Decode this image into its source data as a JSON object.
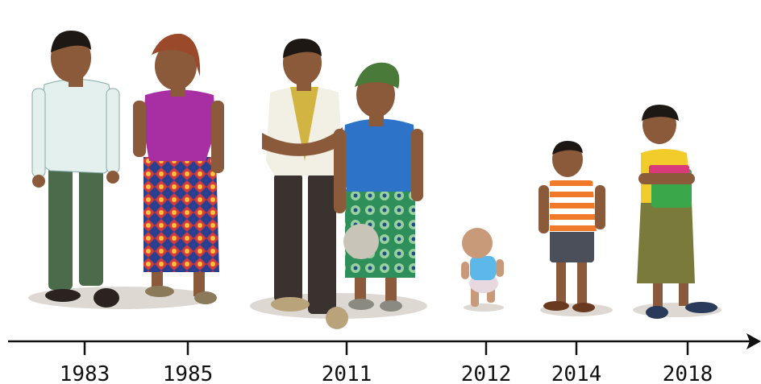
{
  "timeline": {
    "labels": [
      "1983",
      "1985",
      "2011",
      "2012",
      "2014",
      "2018"
    ]
  }
}
